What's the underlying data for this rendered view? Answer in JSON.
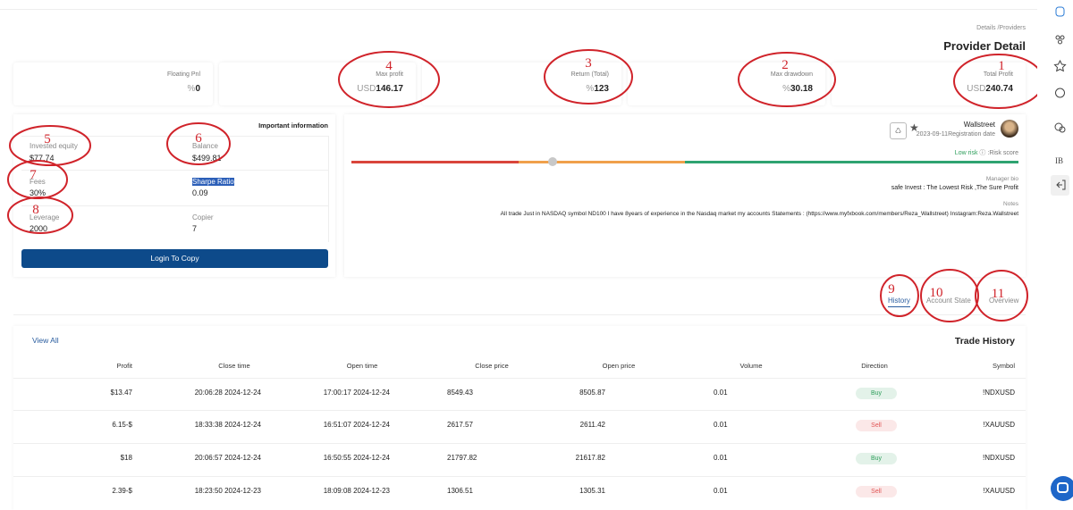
{
  "breadcrumb": "Details /Providers",
  "title": "Provider Detail",
  "stats": [
    {
      "label": "Floating Pnl",
      "unit": "%",
      "value": "0"
    },
    {
      "label": "Max profit",
      "unit": "USD",
      "value": "146.17"
    },
    {
      "label": "Return (Total)",
      "unit": "%",
      "value": "123"
    },
    {
      "label": "Max drawdown",
      "unit": "%",
      "value": "30.18"
    },
    {
      "label": "Total Profit",
      "unit": "USD",
      "value": "240.74"
    }
  ],
  "info": {
    "title": "Important information",
    "items": [
      {
        "label": "Invested equity",
        "value": "$77.74"
      },
      {
        "label": "Balance",
        "value": "$499.81"
      },
      {
        "label": "Fees",
        "value": "30%"
      },
      {
        "label": "Sharpe Ratio",
        "value": "0.09"
      },
      {
        "label": "Leverage",
        "value": "2000"
      },
      {
        "label": "Copier",
        "value": "7"
      }
    ],
    "button": "Login To Copy"
  },
  "profile": {
    "name": "Wallstreet",
    "registration": "2023-09-11Registration date",
    "risk": "Low risk",
    "risk_label": ":Risk score",
    "bio_label": "Manager bio",
    "bio": "safe Invest : The Lowest Risk ,The Sure Profit",
    "notes_label": "Notes",
    "notes": "All trade Just in NASDAQ symbol ND100 I have 8years of experience in the Nasdaq market my accounts Statements : (https://www.myfxbook.com/members/Reza_Wallstreet) Instagram:Reza.Wallstreet"
  },
  "tabs": [
    "History",
    "Account State",
    "Overview"
  ],
  "view_all": "View All",
  "section_title": "Trade History",
  "table": {
    "headers": [
      "Profit",
      "Close time",
      "Open time",
      "Close price",
      "Open price",
      "Volume",
      "Direction",
      "Symbol"
    ],
    "rows": [
      [
        "$13.47",
        "20:06:28 2024-12-24",
        "17:00:17 2024-12-24",
        "8549.43",
        "8505.87",
        "0.01",
        "Buy",
        "!NDXUSD"
      ],
      [
        "6.15-$",
        "18:33:38 2024-12-24",
        "16:51:07 2024-12-24",
        "2617.57",
        "2611.42",
        "0.01",
        "Sell",
        "!XAUUSD"
      ],
      [
        "$18",
        "20:06:57 2024-12-24",
        "16:50:55 2024-12-24",
        "21797.82",
        "21617.82",
        "0.01",
        "Buy",
        "!NDXUSD"
      ],
      [
        "2.39-$",
        "18:23:50 2024-12-23",
        "18:09:08 2024-12-23",
        "1306.51",
        "1305.31",
        "0.01",
        "Sell",
        "!XAUUSD"
      ]
    ],
    "direction_colors": [
      "#2e9e5b",
      "#e05555",
      "#2e9e5b",
      "#e05555"
    ]
  },
  "sidebar": {
    "ib": "IB"
  },
  "annotations": [
    "1",
    "2",
    "3",
    "4",
    "5",
    "6",
    "7",
    "8",
    "9",
    "10",
    "11"
  ]
}
